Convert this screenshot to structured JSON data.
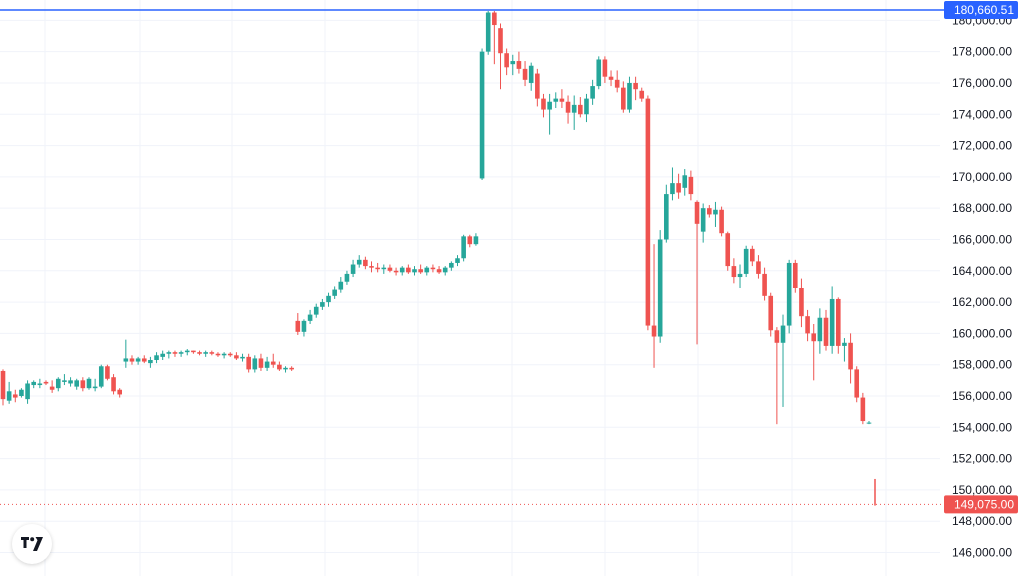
{
  "colors": {
    "up": "#26a69a",
    "down": "#ef5350",
    "grid": "#f0f3fa",
    "axis_text": "#131722",
    "high_line": "#2962ff",
    "last_line": "#ef5350",
    "background": "#ffffff"
  },
  "logo": {
    "icon": "tradingview-logo-icon"
  },
  "chart_data": {
    "type": "candlestick",
    "ylim": [
      144500,
      181300
    ],
    "y_ticks": [
      {
        "value": 146000,
        "label": "146,000.00"
      },
      {
        "value": 148000,
        "label": "148,000.00"
      },
      {
        "value": 150000,
        "label": "150,000.00"
      },
      {
        "value": 152000,
        "label": "152,000.00"
      },
      {
        "value": 154000,
        "label": "154,000.00"
      },
      {
        "value": 156000,
        "label": "156,000.00"
      },
      {
        "value": 158000,
        "label": "158,000.00"
      },
      {
        "value": 160000,
        "label": "160,000.00"
      },
      {
        "value": 162000,
        "label": "162,000.00"
      },
      {
        "value": 164000,
        "label": "164,000.00"
      },
      {
        "value": 166000,
        "label": "166,000.00"
      },
      {
        "value": 168000,
        "label": "168,000.00"
      },
      {
        "value": 170000,
        "label": "170,000.00"
      },
      {
        "value": 172000,
        "label": "172,000.00"
      },
      {
        "value": 174000,
        "label": "174,000.00"
      },
      {
        "value": 176000,
        "label": "176,000.00"
      },
      {
        "value": 178000,
        "label": "178,000.00"
      },
      {
        "value": 180000,
        "label": "180,000.00"
      }
    ],
    "high_marker": {
      "value": 180660.51,
      "label": "180,660.51"
    },
    "last_marker": {
      "value": 149075.0,
      "label": "149,075.00"
    },
    "grid": true,
    "candles": [
      [
        157600,
        157700,
        155400,
        155800
      ],
      [
        155700,
        156900,
        155500,
        156300
      ],
      [
        156100,
        156400,
        155600,
        155900
      ],
      [
        156000,
        156500,
        155900,
        156400
      ],
      [
        155800,
        157000,
        155500,
        156800
      ],
      [
        156700,
        157000,
        156500,
        156900
      ],
      [
        156700,
        157100,
        156500,
        156800
      ],
      [
        156900,
        157000,
        156700,
        156800
      ],
      [
        156600,
        157000,
        156200,
        156400
      ],
      [
        156500,
        157200,
        156300,
        157100
      ],
      [
        156900,
        157400,
        156700,
        157000
      ],
      [
        156800,
        157200,
        156600,
        157000
      ],
      [
        156600,
        157100,
        156400,
        157000
      ],
      [
        157000,
        157200,
        156300,
        156500
      ],
      [
        156500,
        157200,
        156400,
        157100
      ],
      [
        156500,
        157100,
        156300,
        156600
      ],
      [
        156600,
        158000,
        156500,
        157900
      ],
      [
        157900,
        158000,
        157000,
        157100
      ],
      [
        157200,
        157400,
        156100,
        156300
      ],
      [
        156400,
        156500,
        155900,
        156100
      ],
      [
        158200,
        159600,
        157800,
        158400
      ],
      [
        158400,
        158600,
        158000,
        158200
      ],
      [
        158200,
        158500,
        158000,
        158400
      ],
      [
        158400,
        158600,
        158100,
        158200
      ],
      [
        158100,
        158500,
        157800,
        158300
      ],
      [
        158300,
        158800,
        158100,
        158600
      ],
      [
        158500,
        158900,
        158300,
        158700
      ],
      [
        158700,
        158900,
        158400,
        158800
      ],
      [
        158800,
        158900,
        158500,
        158700
      ],
      [
        158700,
        158900,
        158500,
        158800
      ],
      [
        158800,
        159000,
        158600,
        158900
      ],
      [
        158900,
        158900,
        158700,
        158800
      ],
      [
        158800,
        158900,
        158600,
        158700
      ],
      [
        158700,
        158900,
        158500,
        158800
      ],
      [
        158800,
        158900,
        158600,
        158700
      ],
      [
        158700,
        158800,
        158500,
        158600
      ],
      [
        158600,
        158800,
        158400,
        158700
      ],
      [
        158700,
        158800,
        158500,
        158600
      ],
      [
        158600,
        158800,
        158300,
        158400
      ],
      [
        158400,
        158700,
        158200,
        158500
      ],
      [
        158500,
        158700,
        157500,
        157700
      ],
      [
        157700,
        158600,
        157500,
        158400
      ],
      [
        158400,
        158700,
        157600,
        157800
      ],
      [
        157800,
        158500,
        157600,
        158200
      ],
      [
        158200,
        158700,
        157800,
        158000
      ],
      [
        158000,
        158200,
        157600,
        157700
      ],
      [
        157700,
        157900,
        157500,
        157800
      ],
      [
        157800,
        157900,
        157600,
        157700
      ],
      [
        160800,
        161300,
        159900,
        160100
      ],
      [
        160100,
        160900,
        159800,
        160800
      ],
      [
        160800,
        161500,
        160600,
        161200
      ],
      [
        161200,
        161900,
        161000,
        161700
      ],
      [
        161700,
        162200,
        161500,
        162000
      ],
      [
        162000,
        162600,
        161700,
        162400
      ],
      [
        162400,
        163000,
        162200,
        162800
      ],
      [
        162800,
        163600,
        162600,
        163300
      ],
      [
        163300,
        164000,
        163100,
        163800
      ],
      [
        163800,
        164700,
        163600,
        164400
      ],
      [
        164400,
        165000,
        164200,
        164700
      ],
      [
        164700,
        164900,
        164100,
        164300
      ],
      [
        164300,
        164600,
        163900,
        164200
      ],
      [
        164200,
        164500,
        163900,
        164100
      ],
      [
        164100,
        164400,
        163800,
        164200
      ],
      [
        164200,
        164400,
        163900,
        164000
      ],
      [
        164000,
        164200,
        163700,
        163900
      ],
      [
        163900,
        164300,
        163700,
        164200
      ],
      [
        164200,
        164400,
        163800,
        163900
      ],
      [
        163900,
        164300,
        163700,
        164100
      ],
      [
        164100,
        164400,
        163800,
        163900
      ],
      [
        163900,
        164300,
        163700,
        164200
      ],
      [
        164200,
        164400,
        163900,
        164100
      ],
      [
        164100,
        164300,
        163800,
        163900
      ],
      [
        163900,
        164300,
        163700,
        164200
      ],
      [
        164200,
        164600,
        164000,
        164500
      ],
      [
        164500,
        165000,
        164300,
        164800
      ],
      [
        164800,
        166300,
        164600,
        166200
      ],
      [
        166200,
        166300,
        165500,
        165700
      ],
      [
        165700,
        166400,
        165600,
        166200
      ],
      [
        169900,
        178200,
        169800,
        178000
      ],
      [
        178000,
        180600,
        177800,
        180500
      ],
      [
        180500,
        180600,
        177200,
        179700
      ],
      [
        179500,
        179800,
        175600,
        177900
      ],
      [
        177900,
        178200,
        176500,
        177000
      ],
      [
        177200,
        177800,
        176500,
        177400
      ],
      [
        177400,
        178000,
        176600,
        176900
      ],
      [
        176900,
        177400,
        175800,
        176200
      ],
      [
        176000,
        177300,
        175500,
        177100
      ],
      [
        176600,
        176900,
        174500,
        175000
      ],
      [
        175000,
        175300,
        173800,
        174300
      ],
      [
        174300,
        175300,
        172700,
        174800
      ],
      [
        174800,
        175400,
        174400,
        175000
      ],
      [
        175000,
        175600,
        174400,
        174800
      ],
      [
        174800,
        175200,
        173400,
        174100
      ],
      [
        174100,
        175200,
        173000,
        174600
      ],
      [
        174600,
        175100,
        173800,
        174000
      ],
      [
        174000,
        175300,
        173500,
        175000
      ],
      [
        175000,
        176200,
        174600,
        175800
      ],
      [
        175800,
        177700,
        175600,
        177500
      ],
      [
        177500,
        177700,
        176000,
        176400
      ],
      [
        176400,
        176800,
        175800,
        176200
      ],
      [
        176200,
        176800,
        175400,
        175700
      ],
      [
        175700,
        176100,
        174100,
        174300
      ],
      [
        174300,
        176400,
        174100,
        176000
      ],
      [
        176000,
        176400,
        174900,
        175600
      ],
      [
        175500,
        175700,
        174800,
        175000
      ],
      [
        175000,
        175200,
        160200,
        160500
      ],
      [
        160500,
        165700,
        157800,
        159800
      ],
      [
        159800,
        166600,
        159400,
        166000
      ],
      [
        166000,
        169500,
        165800,
        168900
      ],
      [
        168900,
        170600,
        168500,
        169600
      ],
      [
        169600,
        170200,
        168600,
        169000
      ],
      [
        169300,
        170500,
        168800,
        170100
      ],
      [
        170000,
        170400,
        168500,
        168900
      ],
      [
        168400,
        168500,
        159300,
        167000
      ],
      [
        166500,
        168300,
        165800,
        168000
      ],
      [
        168000,
        168200,
        167400,
        167600
      ],
      [
        167600,
        168400,
        166800,
        167900
      ],
      [
        167900,
        168100,
        166200,
        166400
      ],
      [
        166400,
        166500,
        164000,
        164300
      ],
      [
        164300,
        164800,
        163200,
        163600
      ],
      [
        163600,
        164400,
        162900,
        163800
      ],
      [
        163800,
        165600,
        163600,
        165400
      ],
      [
        165400,
        165600,
        164300,
        164600
      ],
      [
        164600,
        165000,
        163500,
        163800
      ],
      [
        163800,
        164200,
        162100,
        162400
      ],
      [
        162400,
        162600,
        159800,
        160200
      ],
      [
        160200,
        160400,
        154200,
        159400
      ],
      [
        159400,
        161200,
        155300,
        160500
      ],
      [
        160500,
        164700,
        160000,
        164500
      ],
      [
        164500,
        164700,
        162600,
        162900
      ],
      [
        162900,
        163500,
        160400,
        161100
      ],
      [
        161100,
        161500,
        159500,
        160000
      ],
      [
        160000,
        160600,
        157000,
        159500
      ],
      [
        159500,
        161600,
        158700,
        161000
      ],
      [
        161000,
        161500,
        158900,
        159200
      ],
      [
        159200,
        163000,
        158700,
        162200
      ],
      [
        162200,
        162300,
        158700,
        159200
      ],
      [
        159200,
        159700,
        158200,
        159400
      ],
      [
        159400,
        160000,
        156800,
        157700
      ],
      [
        157700,
        157900,
        155600,
        155900
      ],
      [
        155900,
        156200,
        154200,
        154400
      ],
      [
        154300,
        154400,
        154200,
        154300
      ]
    ],
    "late_wick": {
      "high": 150700,
      "low": 149000
    }
  }
}
